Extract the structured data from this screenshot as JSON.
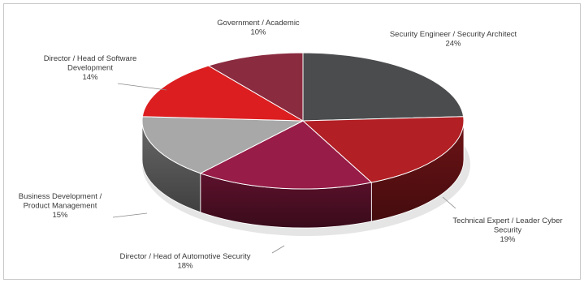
{
  "chart_data": {
    "type": "pie",
    "title": "",
    "categories": [
      "Security Engineer / Security Architect",
      "Technical Expert / Leader Cyber Security",
      "Director / Head of Automotive Security",
      "Business Development / Product Management",
      "Director / Head of Software Development",
      "Government / Academic"
    ],
    "values": [
      24,
      19,
      18,
      15,
      14,
      10
    ],
    "value_labels": [
      "24%",
      "19%",
      "18%",
      "15%",
      "14%",
      "10%"
    ],
    "label_lines": [
      [
        "Security Engineer / Security Architect"
      ],
      [
        "Technical Expert / Leader Cyber",
        "Security"
      ],
      [
        "Director / Head of Automotive Security"
      ],
      [
        "Business Development /",
        "Product Management"
      ],
      [
        "Director / Head of Software",
        "Development"
      ],
      [
        "Government / Academic"
      ]
    ],
    "colors": [
      "#4b4c4e",
      "#b21f24",
      "#971c47",
      "#a8a8a8",
      "#dc1e20",
      "#8a2b3f"
    ],
    "style": "3d",
    "legend": "none"
  }
}
